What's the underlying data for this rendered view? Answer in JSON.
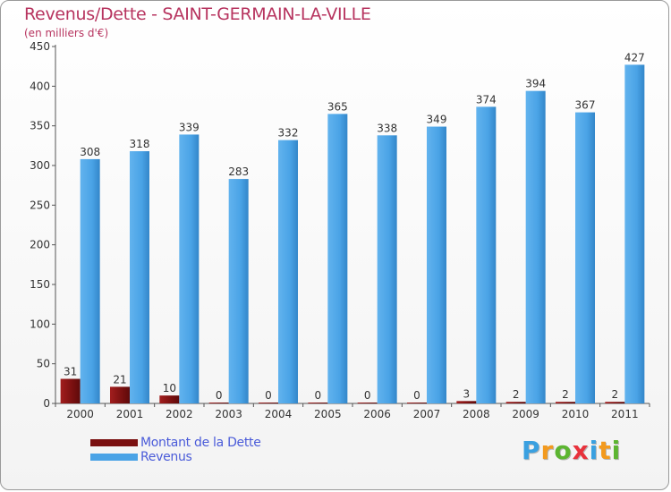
{
  "chart_data": {
    "type": "bar",
    "title": "Revenus/Dette - SAINT-GERMAIN-LA-VILLE",
    "subtitle": "(en milliers d'€)",
    "categories": [
      "2000",
      "2001",
      "2002",
      "2003",
      "2004",
      "2005",
      "2006",
      "2007",
      "2008",
      "2009",
      "2010",
      "2011"
    ],
    "series": [
      {
        "name": "Montant de la Dette",
        "color": "#7a1010",
        "values": [
          31,
          21,
          10,
          0,
          0,
          0,
          0,
          0,
          3,
          2,
          2,
          2
        ]
      },
      {
        "name": "Revenus",
        "color": "#4aa3e6",
        "values": [
          308,
          318,
          339,
          283,
          332,
          365,
          338,
          349,
          374,
          394,
          367,
          427
        ]
      }
    ],
    "yticks": [
      0,
      50,
      100,
      150,
      200,
      250,
      300,
      350,
      400,
      450
    ],
    "ylim": [
      0,
      450
    ],
    "grid": false,
    "legend": "bottom-left"
  },
  "logo": {
    "letters": [
      "P",
      "r",
      "o",
      "x",
      "i",
      "t",
      "i"
    ],
    "colors": [
      "#3aa0e0",
      "#f39a1e",
      "#5cb531",
      "#e8323c",
      "#3aa0e0",
      "#f39a1e",
      "#5cb531"
    ]
  }
}
